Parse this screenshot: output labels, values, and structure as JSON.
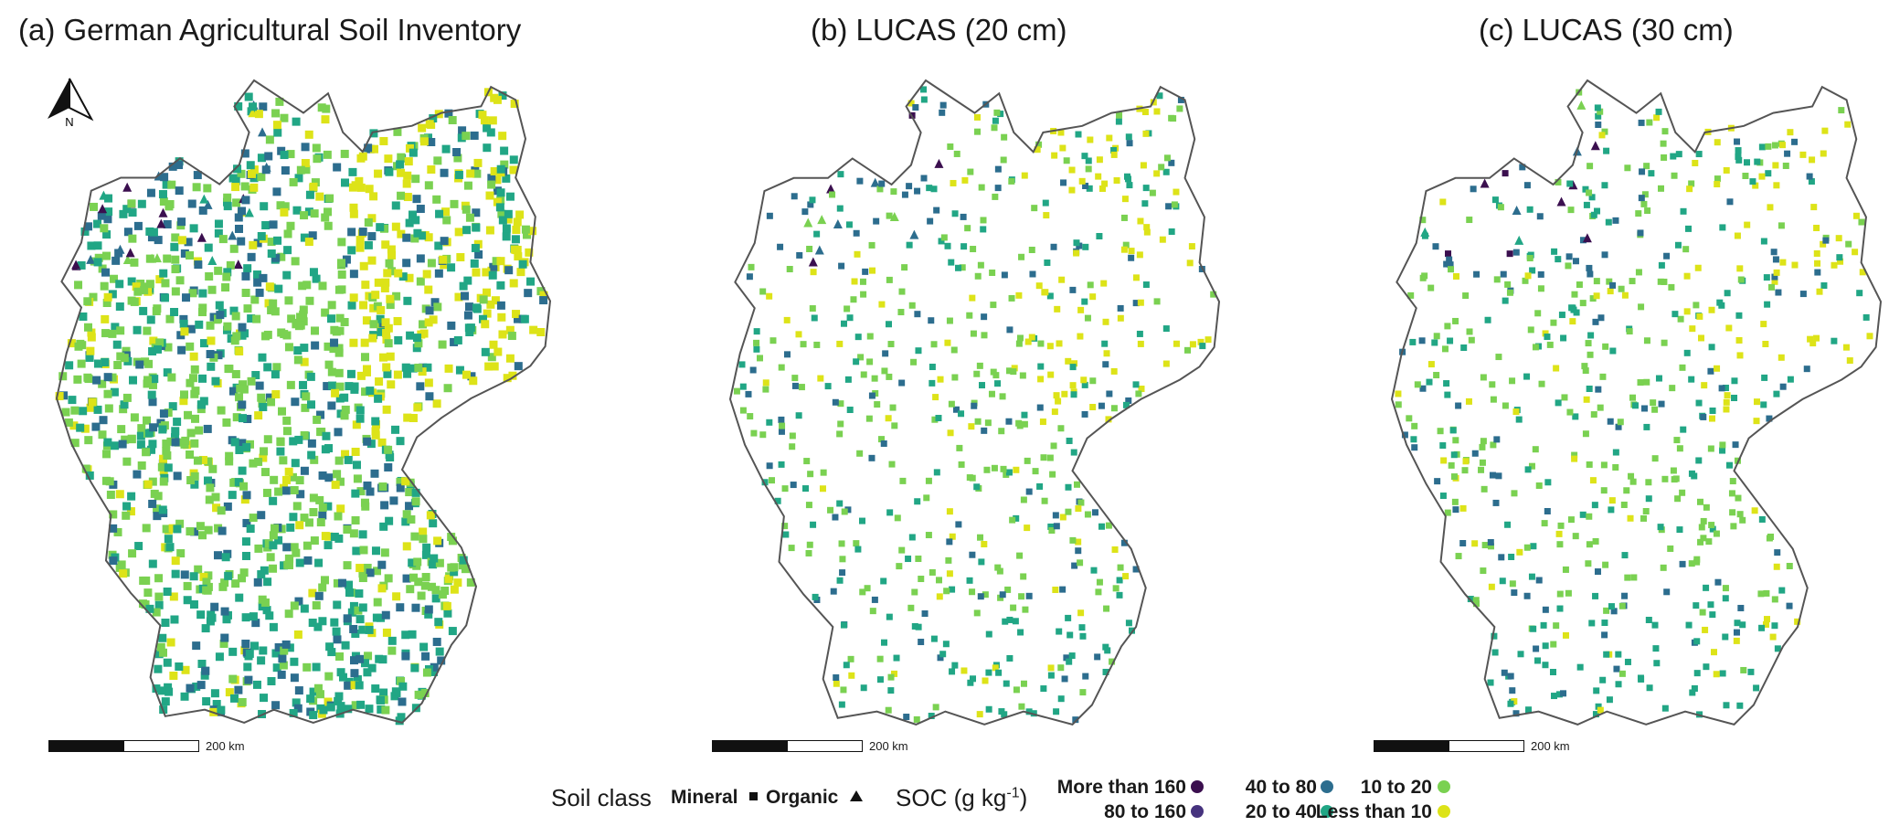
{
  "panels": [
    {
      "title": "(a)  German Agricultural Soil Inventory",
      "scale_label": "200 km",
      "density": 1500,
      "seed": 11
    },
    {
      "title": "(b)  LUCAS (20 cm)",
      "scale_label": "200 km",
      "density": 620,
      "seed": 23
    },
    {
      "title": "(c)  LUCAS (30 cm)",
      "scale_label": "200 km",
      "density": 620,
      "seed": 37
    }
  ],
  "north_arrow": {
    "label": "N"
  },
  "legend": {
    "soil_class_title": "Soil class",
    "mineral_label": "Mineral",
    "organic_label": "Organic",
    "soc_title": "SOC (g kg",
    "soc_superscript": "-1",
    "soc_close": ")",
    "classes": [
      {
        "label": "More than 160",
        "color": "#3b0f4f"
      },
      {
        "label": "80 to 160",
        "color": "#46337e"
      },
      {
        "label": "40 to 80",
        "color": "#2c6d8e"
      },
      {
        "label": "20 to 40",
        "color": "#21a685"
      },
      {
        "label": "10 to 20",
        "color": "#7ad151"
      },
      {
        "label": "Less than 10",
        "color": "#dde318"
      }
    ]
  },
  "colors": {
    "outline": "#555555",
    "mineral": "#111111"
  }
}
